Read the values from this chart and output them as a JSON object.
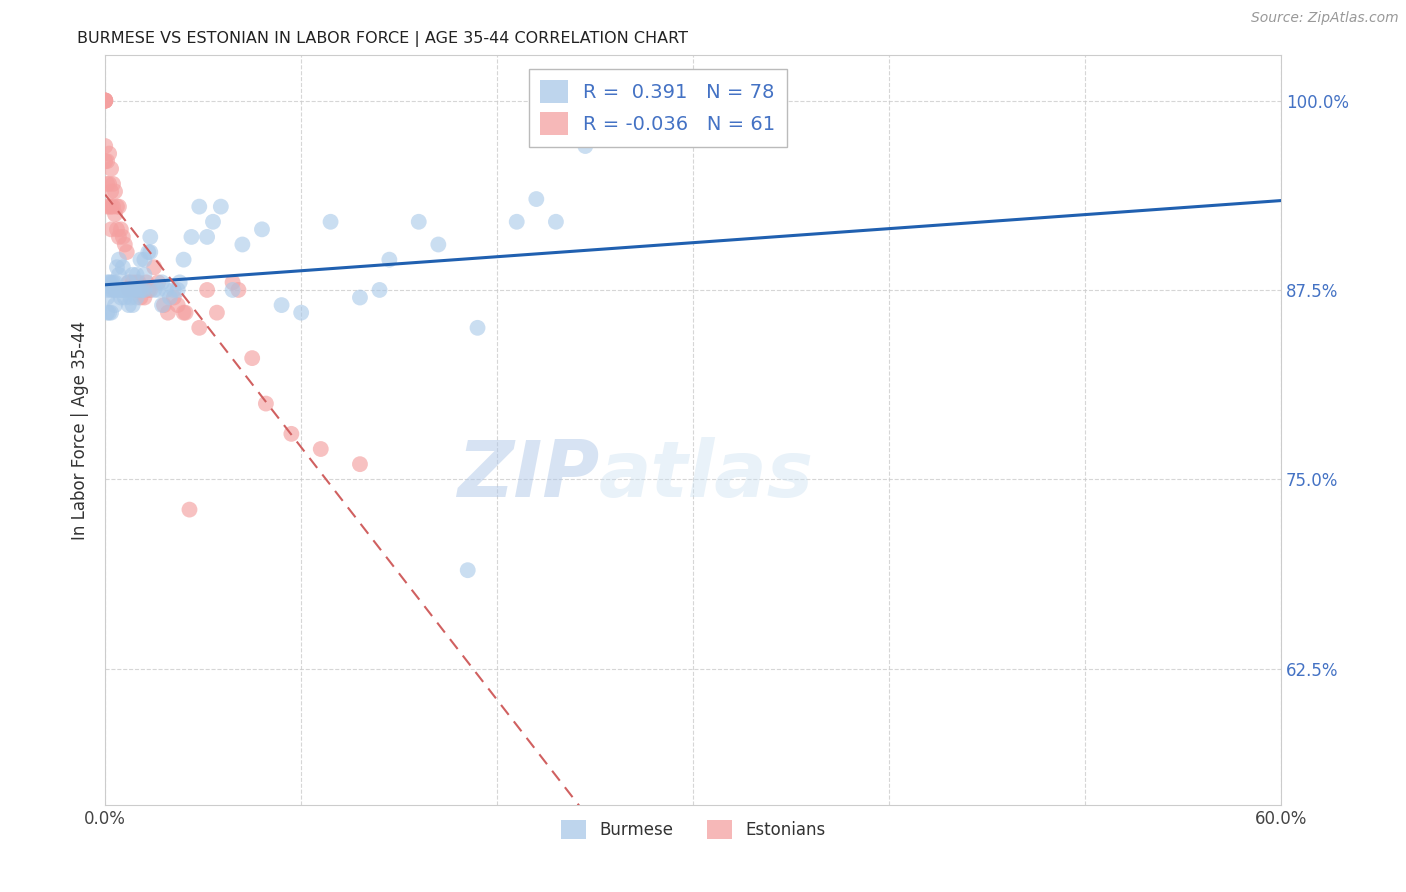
{
  "title": "BURMESE VS ESTONIAN IN LABOR FORCE | AGE 35-44 CORRELATION CHART",
  "source": "Source: ZipAtlas.com",
  "xlabel": "",
  "ylabel": "In Labor Force | Age 35-44",
  "xlim": [
    0.0,
    0.6
  ],
  "ylim": [
    0.535,
    1.03
  ],
  "xticks": [
    0.0,
    0.1,
    0.2,
    0.3,
    0.4,
    0.5,
    0.6
  ],
  "xticklabels": [
    "0.0%",
    "",
    "",
    "",
    "",
    "",
    "60.0%"
  ],
  "yticks": [
    0.625,
    0.75,
    0.875,
    1.0
  ],
  "yticklabels": [
    "62.5%",
    "75.0%",
    "87.5%",
    "100.0%"
  ],
  "burmese_color": "#a8c8e8",
  "estonian_color": "#f4a0a0",
  "burmese_R": 0.391,
  "burmese_N": 78,
  "estonian_R": -0.036,
  "estonian_N": 61,
  "trend_blue": "#2060b0",
  "trend_pink": "#d06060",
  "watermark_zip": "ZIP",
  "watermark_atlas": "atlas",
  "burmese_x": [
    0.001,
    0.001,
    0.001,
    0.001,
    0.002,
    0.002,
    0.003,
    0.003,
    0.003,
    0.004,
    0.004,
    0.005,
    0.005,
    0.005,
    0.006,
    0.006,
    0.007,
    0.007,
    0.007,
    0.008,
    0.008,
    0.009,
    0.009,
    0.01,
    0.01,
    0.011,
    0.012,
    0.012,
    0.013,
    0.013,
    0.014,
    0.014,
    0.014,
    0.015,
    0.016,
    0.016,
    0.017,
    0.018,
    0.018,
    0.019,
    0.02,
    0.02,
    0.02,
    0.022,
    0.023,
    0.023,
    0.025,
    0.027,
    0.029,
    0.029,
    0.031,
    0.033,
    0.035,
    0.037,
    0.038,
    0.04,
    0.044,
    0.048,
    0.052,
    0.055,
    0.059,
    0.065,
    0.07,
    0.08,
    0.09,
    0.1,
    0.115,
    0.13,
    0.14,
    0.145,
    0.16,
    0.17,
    0.185,
    0.19,
    0.21,
    0.22,
    0.23,
    0.245
  ],
  "burmese_y": [
    0.88,
    0.875,
    0.87,
    0.86,
    0.88,
    0.86,
    0.88,
    0.875,
    0.86,
    0.88,
    0.875,
    0.88,
    0.875,
    0.865,
    0.89,
    0.875,
    0.895,
    0.885,
    0.875,
    0.875,
    0.87,
    0.89,
    0.875,
    0.875,
    0.87,
    0.875,
    0.88,
    0.865,
    0.875,
    0.87,
    0.885,
    0.875,
    0.865,
    0.875,
    0.885,
    0.87,
    0.875,
    0.895,
    0.875,
    0.875,
    0.895,
    0.885,
    0.875,
    0.9,
    0.91,
    0.9,
    0.875,
    0.875,
    0.88,
    0.865,
    0.875,
    0.87,
    0.875,
    0.875,
    0.88,
    0.895,
    0.91,
    0.93,
    0.91,
    0.92,
    0.93,
    0.875,
    0.905,
    0.915,
    0.865,
    0.86,
    0.92,
    0.87,
    0.875,
    0.895,
    0.92,
    0.905,
    0.69,
    0.85,
    0.92,
    0.935,
    0.92,
    0.97
  ],
  "estonian_x": [
    0.0,
    0.0,
    0.0,
    0.0,
    0.0,
    0.0,
    0.0,
    0.0,
    0.001,
    0.001,
    0.001,
    0.002,
    0.002,
    0.002,
    0.003,
    0.003,
    0.003,
    0.003,
    0.004,
    0.004,
    0.005,
    0.005,
    0.006,
    0.006,
    0.007,
    0.007,
    0.008,
    0.009,
    0.01,
    0.011,
    0.012,
    0.012,
    0.014,
    0.015,
    0.016,
    0.017,
    0.017,
    0.018,
    0.02,
    0.021,
    0.022,
    0.023,
    0.025,
    0.027,
    0.03,
    0.032,
    0.035,
    0.037,
    0.04,
    0.041,
    0.043,
    0.048,
    0.052,
    0.057,
    0.065,
    0.068,
    0.075,
    0.082,
    0.095,
    0.11,
    0.13
  ],
  "estonian_y": [
    1.0,
    1.0,
    1.0,
    1.0,
    1.0,
    1.0,
    0.97,
    0.96,
    0.96,
    0.945,
    0.93,
    0.965,
    0.945,
    0.93,
    0.955,
    0.94,
    0.93,
    0.915,
    0.945,
    0.93,
    0.94,
    0.925,
    0.93,
    0.915,
    0.93,
    0.91,
    0.915,
    0.91,
    0.905,
    0.9,
    0.88,
    0.875,
    0.88,
    0.875,
    0.88,
    0.88,
    0.875,
    0.87,
    0.87,
    0.88,
    0.875,
    0.875,
    0.89,
    0.88,
    0.865,
    0.86,
    0.87,
    0.865,
    0.86,
    0.86,
    0.73,
    0.85,
    0.875,
    0.86,
    0.88,
    0.875,
    0.83,
    0.8,
    0.78,
    0.77,
    0.76
  ]
}
